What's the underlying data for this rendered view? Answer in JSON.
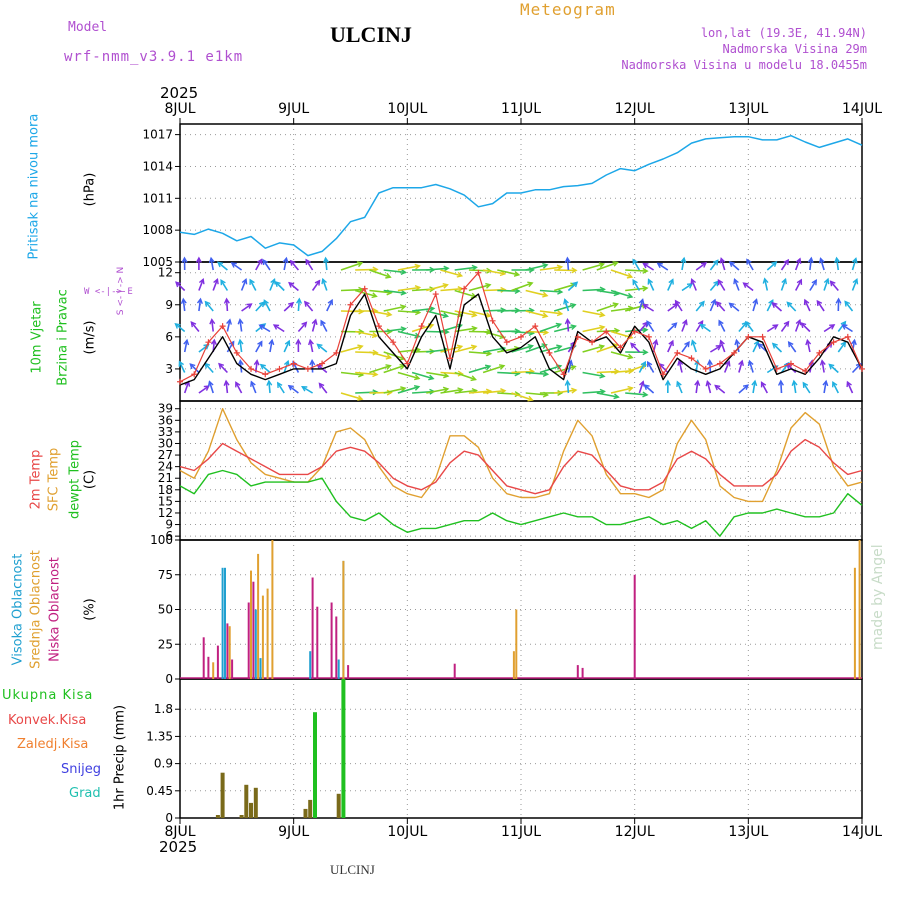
{
  "header": {
    "title": "ULCINJ",
    "section_title": "Meteogram",
    "model_label": "Model",
    "model_name": "wrf-nmm_v3.9.1 e1km",
    "location_line": "lon,lat (19.3E, 41.94N)",
    "altitude_line": "Nadmorska Visina 29m",
    "model_altitude_line": "Nadmorska Visina u modelu 18.0455m",
    "year_top": "2025",
    "year_bottom": "2025",
    "footer_station": "ULCINJ",
    "watermark": "made by Angel"
  },
  "colors": {
    "pressure": "#1da7e8",
    "wind_speed": "#000000",
    "wind_gust": "#e8423a",
    "t2m": "#e84848",
    "sfc": "#e0a030",
    "dewpt": "#20c020",
    "cloud_high": "#20a0d0",
    "cloud_mid": "#e0a030",
    "cloud_low": "#c02080",
    "precip_total": "#20c020",
    "precip_conv": "#e84848",
    "precip_stable": "#f08030",
    "snow": "#4040e0",
    "hail": "#20c0b0"
  },
  "chart_data": [
    {
      "type": "line",
      "panel": "pressure",
      "ylabel_main": "Pritisak na nivou mora",
      "ylabel_unit": "(hPa)",
      "ylim": [
        1005,
        1018
      ],
      "yticks": [
        1005,
        1008,
        1011,
        1014,
        1017
      ],
      "grid": true,
      "x_hours": [
        0,
        3,
        6,
        9,
        12,
        15,
        18,
        21,
        24,
        27,
        30,
        33,
        36,
        39,
        42,
        45,
        48,
        51,
        54,
        57,
        60,
        63,
        66,
        69,
        72,
        75,
        78,
        81,
        84,
        87,
        90,
        93,
        96,
        99,
        102,
        105,
        108,
        111,
        114,
        117,
        120,
        123,
        126,
        129,
        132,
        135,
        138,
        141,
        144
      ],
      "series": [
        {
          "values": [
            1007.8,
            1007.6,
            1008.1,
            1007.7,
            1007.0,
            1007.4,
            1006.3,
            1006.8,
            1006.6,
            1005.6,
            1006.0,
            1007.2,
            1008.8,
            1009.2,
            1011.5,
            1012.0,
            1012.0,
            1012.0,
            1012.3,
            1011.9,
            1011.3,
            1010.2,
            1010.5,
            1011.5,
            1011.5,
            1011.8,
            1011.8,
            1012.1,
            1012.2,
            1012.4,
            1013.2,
            1013.8,
            1013.6,
            1014.2,
            1014.7,
            1015.3,
            1016.2,
            1016.6,
            1016.7,
            1016.8,
            1016.8,
            1016.5,
            1016.5,
            1016.9,
            1016.3,
            1015.8,
            1016.2,
            1016.6,
            1016.0
          ]
        }
      ]
    },
    {
      "type": "line",
      "panel": "wind",
      "ylabel_main": "10m Vjetar",
      "ylabel_sub": "Brzina i Pravac",
      "ylabel_unit": "(m/s)",
      "compass_label": "W <-|-> E",
      "compass_vertical": "S <- | -> N",
      "ylim": [
        0,
        13
      ],
      "yticks": [
        3,
        6,
        9,
        12
      ],
      "grid": true,
      "x_hours": [
        0,
        3,
        6,
        9,
        12,
        15,
        18,
        21,
        24,
        27,
        30,
        33,
        36,
        39,
        42,
        45,
        48,
        51,
        54,
        57,
        60,
        63,
        66,
        69,
        72,
        75,
        78,
        81,
        84,
        87,
        90,
        93,
        96,
        99,
        102,
        105,
        108,
        111,
        114,
        117,
        120,
        123,
        126,
        129,
        132,
        135,
        138,
        141,
        144
      ],
      "series": [
        {
          "name": "speed",
          "values": [
            1.5,
            2.0,
            4.0,
            6.0,
            3.5,
            2.5,
            2.0,
            2.5,
            3.0,
            3.0,
            3.0,
            3.5,
            8.0,
            10.0,
            6.0,
            4.5,
            3.0,
            6.0,
            8.0,
            3.0,
            9.0,
            10.0,
            6.0,
            4.5,
            5.0,
            6.0,
            3.0,
            2.0,
            6.5,
            5.5,
            6.0,
            4.5,
            7.0,
            5.5,
            2.0,
            4.0,
            3.0,
            2.5,
            3.0,
            4.5,
            6.0,
            5.5,
            2.5,
            3.0,
            2.5,
            4.0,
            6.0,
            5.5,
            3.0
          ]
        },
        {
          "name": "gust",
          "values": [
            1.8,
            2.5,
            5.5,
            7.0,
            4.5,
            3.0,
            2.5,
            3.0,
            3.5,
            3.0,
            3.5,
            4.5,
            9.0,
            10.5,
            7.0,
            5.5,
            3.5,
            7.0,
            10.0,
            4.0,
            10.5,
            12.0,
            7.5,
            5.5,
            6.0,
            7.0,
            4.5,
            2.5,
            6.0,
            5.5,
            6.5,
            5.0,
            6.5,
            6.0,
            2.5,
            4.5,
            4.0,
            3.0,
            3.5,
            4.5,
            6.0,
            6.0,
            3.0,
            3.5,
            2.8,
            4.5,
            5.5,
            6.0,
            3.0
          ]
        }
      ]
    },
    {
      "type": "line",
      "panel": "temperature",
      "ylabel_lines": [
        "2m Temp",
        "SFC Temp",
        "dewpt Temp"
      ],
      "ylabel_unit": "(C)",
      "ylim": [
        5,
        41
      ],
      "yticks": [
        6,
        9,
        12,
        15,
        18,
        21,
        24,
        27,
        30,
        33,
        36,
        39
      ],
      "grid": true,
      "x_hours": [
        0,
        3,
        6,
        9,
        12,
        15,
        18,
        21,
        24,
        27,
        30,
        33,
        36,
        39,
        42,
        45,
        48,
        51,
        54,
        57,
        60,
        63,
        66,
        69,
        72,
        75,
        78,
        81,
        84,
        87,
        90,
        93,
        96,
        99,
        102,
        105,
        108,
        111,
        114,
        117,
        120,
        123,
        126,
        129,
        132,
        135,
        138,
        141,
        144
      ],
      "series": [
        {
          "name": "2m Temp",
          "values": [
            24,
            23,
            26,
            30,
            28,
            26,
            24,
            22,
            22,
            22,
            24,
            28,
            29,
            28,
            25,
            21,
            19,
            18,
            20,
            25,
            28,
            27,
            23,
            19,
            18,
            17,
            18,
            24,
            28,
            27,
            23,
            19,
            18,
            18,
            20,
            26,
            28,
            26,
            22,
            19,
            19,
            19,
            22,
            28,
            31,
            29,
            25,
            22,
            23
          ]
        },
        {
          "name": "SFC Temp",
          "values": [
            23,
            21,
            28,
            39,
            31,
            25,
            22,
            21,
            20,
            20,
            24,
            33,
            34,
            31,
            24,
            19,
            17,
            16,
            21,
            32,
            32,
            29,
            21,
            17,
            16,
            16,
            17,
            28,
            36,
            32,
            22,
            17,
            17,
            16,
            18,
            30,
            36,
            31,
            19,
            16,
            15,
            15,
            23,
            34,
            38,
            35,
            24,
            19,
            20
          ]
        },
        {
          "name": "dewpt Temp",
          "values": [
            19,
            17,
            22,
            23,
            22,
            19,
            20,
            20,
            20,
            20,
            21,
            15,
            11,
            10,
            12,
            9,
            7,
            8,
            8,
            9,
            10,
            10,
            12,
            10,
            9,
            10,
            11,
            12,
            11,
            11,
            9,
            9,
            10,
            11,
            9,
            10,
            8,
            10,
            6,
            11,
            12,
            12,
            13,
            12,
            11,
            11,
            12,
            17,
            14
          ]
        }
      ]
    },
    {
      "type": "bar",
      "panel": "cloud",
      "ylabel_lines": [
        "Visoka Oblacnost",
        "Srednja Oblacnost",
        "Niska Oblacnost"
      ],
      "ylabel_unit": "(%)",
      "ylim": [
        0,
        100
      ],
      "yticks": [
        0,
        25,
        50,
        75,
        100
      ],
      "grid": true,
      "bars": [
        {
          "series": "low",
          "hour": 5,
          "value": 30
        },
        {
          "series": "low",
          "hour": 6,
          "value": 16
        },
        {
          "series": "mid",
          "hour": 7,
          "value": 12
        },
        {
          "series": "low",
          "hour": 8,
          "value": 24
        },
        {
          "series": "high",
          "hour": 9,
          "value": 80
        },
        {
          "series": "high",
          "hour": 9.5,
          "value": 80
        },
        {
          "series": "low",
          "hour": 10,
          "value": 40
        },
        {
          "series": "mid",
          "hour": 10.5,
          "value": 38
        },
        {
          "series": "low",
          "hour": 11,
          "value": 14
        },
        {
          "series": "low",
          "hour": 14.5,
          "value": 55
        },
        {
          "series": "mid",
          "hour": 15,
          "value": 78
        },
        {
          "series": "low",
          "hour": 15.5,
          "value": 70
        },
        {
          "series": "high",
          "hour": 16,
          "value": 50
        },
        {
          "series": "mid",
          "hour": 16.5,
          "value": 90
        },
        {
          "series": "high",
          "hour": 17,
          "value": 15
        },
        {
          "series": "mid",
          "hour": 17.5,
          "value": 60
        },
        {
          "series": "mid",
          "hour": 18.5,
          "value": 65
        },
        {
          "series": "mid",
          "hour": 19.5,
          "value": 100
        },
        {
          "series": "high",
          "hour": 27.5,
          "value": 20
        },
        {
          "series": "low",
          "hour": 28,
          "value": 73
        },
        {
          "series": "low",
          "hour": 29,
          "value": 52
        },
        {
          "series": "low",
          "hour": 32,
          "value": 55
        },
        {
          "series": "low",
          "hour": 33,
          "value": 45
        },
        {
          "series": "high",
          "hour": 33.5,
          "value": 14
        },
        {
          "series": "high",
          "hour": 34.5,
          "value": 85
        },
        {
          "series": "mid",
          "hour": 34.5,
          "value": 85
        },
        {
          "series": "low",
          "hour": 35.5,
          "value": 10
        },
        {
          "series": "low",
          "hour": 58,
          "value": 11
        },
        {
          "series": "mid",
          "hour": 70.5,
          "value": 20
        },
        {
          "series": "mid",
          "hour": 71,
          "value": 50
        },
        {
          "series": "low",
          "hour": 84,
          "value": 10
        },
        {
          "series": "low",
          "hour": 85,
          "value": 8
        },
        {
          "series": "low",
          "hour": 96,
          "value": 75
        },
        {
          "series": "mid",
          "hour": 142.5,
          "value": 80
        },
        {
          "series": "mid",
          "hour": 143.5,
          "value": 100
        }
      ]
    },
    {
      "type": "bar",
      "panel": "precip",
      "legend": [
        "Ukupna Kisa",
        "Konvek.Kisa",
        "Zaledj.Kisa",
        "Snijeg",
        "Grad"
      ],
      "ylabel_unit": "1hr Precip (mm)",
      "ylim": [
        0,
        2.3
      ],
      "yticks": [
        0,
        0.45,
        0.9,
        1.35,
        1.8
      ],
      "grid": true,
      "bars": [
        {
          "hour": 8,
          "value": 0.05
        },
        {
          "hour": 9,
          "value": 0.75
        },
        {
          "hour": 13,
          "value": 0.05
        },
        {
          "hour": 14,
          "value": 0.55
        },
        {
          "hour": 15,
          "value": 0.25
        },
        {
          "hour": 16,
          "value": 0.5
        },
        {
          "hour": 26.5,
          "value": 0.15
        },
        {
          "hour": 27.5,
          "value": 0.3
        },
        {
          "hour": 28.5,
          "value": 1.75
        },
        {
          "hour": 33.5,
          "value": 0.4
        },
        {
          "hour": 34.5,
          "value": 2.3
        }
      ]
    }
  ],
  "x_axis": {
    "day_labels": [
      "8JUL",
      "9JUL",
      "10JUL",
      "11JUL",
      "12JUL",
      "13JUL",
      "14JUL"
    ],
    "range_hours": [
      0,
      144
    ]
  }
}
